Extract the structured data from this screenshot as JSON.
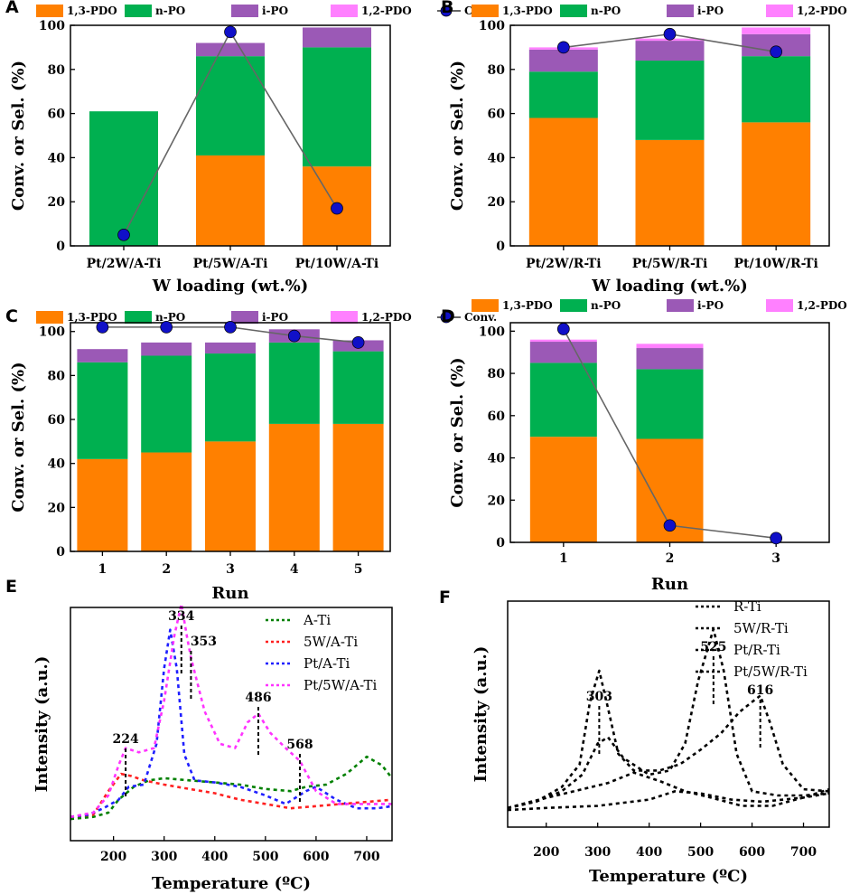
{
  "bar_series": [
    "1,3-PDO",
    "n-PO",
    "i-PO",
    "1,2-PDO"
  ],
  "conv_label": "Conv.",
  "colors": {
    "1,3-PDO": "#ff8000",
    "n-PO": "#00b050",
    "i-PO": "#9b59b6",
    "1,2-PDO": "#ff80ff",
    "conv_line": "#666666",
    "conv_marker": "#1010c8",
    "A-Ti": "#008000",
    "5W/A-Ti": "#ff2020",
    "Pt/A-Ti": "#1f1fff",
    "Pt/5W/A-Ti": "#ff33ff"
  },
  "chart_data": [
    {
      "panel": "A",
      "type": "bar",
      "stacked": true,
      "categories": [
        "Pt/2W/A-Ti",
        "Pt/5W/A-Ti",
        "Pt/10W/A-Ti"
      ],
      "series": [
        {
          "name": "1,3-PDO",
          "values": [
            0,
            41,
            36
          ]
        },
        {
          "name": "n-PO",
          "values": [
            61,
            45,
            54
          ]
        },
        {
          "name": "i-PO",
          "values": [
            0,
            6,
            9
          ]
        },
        {
          "name": "1,2-PDO",
          "values": [
            0,
            0,
            0
          ]
        }
      ],
      "conversion": [
        5,
        97,
        17
      ],
      "xlabel": "W loading (wt.%)",
      "ylabel": "Conv. or Sel. (%)",
      "ylim": [
        0,
        100
      ],
      "yticks": [
        0,
        20,
        40,
        60,
        80,
        100
      ]
    },
    {
      "panel": "B",
      "type": "bar",
      "stacked": true,
      "categories": [
        "Pt/2W/R-Ti",
        "Pt/5W/R-Ti",
        "Pt/10W/R-Ti"
      ],
      "series": [
        {
          "name": "1,3-PDO",
          "values": [
            58,
            48,
            56
          ]
        },
        {
          "name": "n-PO",
          "values": [
            21,
            36,
            30
          ]
        },
        {
          "name": "i-PO",
          "values": [
            10,
            9,
            10
          ]
        },
        {
          "name": "1,2-PDO",
          "values": [
            1,
            1,
            3
          ]
        }
      ],
      "conversion": [
        90,
        96,
        88
      ],
      "xlabel": "W loading (wt.%)",
      "ylabel": "Conv. or Sel. (%)",
      "ylim": [
        0,
        100
      ],
      "yticks": [
        0,
        20,
        40,
        60,
        80,
        100
      ]
    },
    {
      "panel": "C",
      "type": "bar",
      "stacked": true,
      "categories": [
        "1",
        "2",
        "3",
        "4",
        "5"
      ],
      "series": [
        {
          "name": "1,3-PDO",
          "values": [
            42,
            45,
            50,
            58,
            58
          ]
        },
        {
          "name": "n-PO",
          "values": [
            44,
            44,
            40,
            37,
            33
          ]
        },
        {
          "name": "i-PO",
          "values": [
            6,
            6,
            5,
            6,
            5
          ]
        },
        {
          "name": "1,2-PDO",
          "values": [
            0,
            0,
            0,
            0,
            0
          ]
        }
      ],
      "conversion": [
        102,
        102,
        102,
        98,
        95
      ],
      "xlabel": "Run",
      "ylabel": "Conv. or Sel. (%)",
      "ylim": [
        0,
        104
      ],
      "yticks": [
        0,
        20,
        40,
        60,
        80,
        100
      ]
    },
    {
      "panel": "D",
      "type": "bar",
      "stacked": true,
      "categories": [
        "1",
        "2",
        "3"
      ],
      "series": [
        {
          "name": "1,3-PDO",
          "values": [
            50,
            49,
            0
          ]
        },
        {
          "name": "n-PO",
          "values": [
            35,
            33,
            0
          ]
        },
        {
          "name": "i-PO",
          "values": [
            10,
            10,
            0
          ]
        },
        {
          "name": "1,2-PDO",
          "values": [
            1,
            2,
            0
          ]
        }
      ],
      "conversion": [
        101,
        8,
        2
      ],
      "xlabel": "Run",
      "ylabel": "Conv. or Sel. (%)",
      "ylim": [
        0,
        104
      ],
      "yticks": [
        0,
        20,
        40,
        60,
        80,
        100
      ]
    },
    {
      "panel": "E",
      "type": "line",
      "xlabel": "Temperature (ºC)",
      "ylabel": "Intensity (a.u.)",
      "xlim": [
        115,
        750
      ],
      "ylim": [
        0,
        100
      ],
      "xticks": [
        200,
        300,
        400,
        500,
        600,
        700
      ],
      "series": [
        {
          "name": "A-Ti",
          "x": [
            115,
            160,
            190,
            210,
            240,
            270,
            300,
            350,
            400,
            450,
            500,
            550,
            580,
            620,
            660,
            700,
            730,
            750
          ],
          "y": [
            5,
            6,
            8,
            14,
            20,
            23,
            24,
            23,
            22,
            21,
            19,
            18,
            20,
            21,
            26,
            34,
            30,
            24
          ]
        },
        {
          "name": "5W/A-Ti",
          "x": [
            115,
            160,
            190,
            215,
            235,
            260,
            300,
            350,
            400,
            450,
            500,
            550,
            600,
            650,
            700,
            750
          ],
          "y": [
            6,
            7,
            18,
            26,
            25,
            23,
            21,
            19,
            17,
            14,
            12,
            10,
            11,
            12,
            13,
            14
          ]
        },
        {
          "name": "Pt/A-Ti",
          "x": [
            115,
            150,
            180,
            210,
            230,
            260,
            285,
            300,
            312,
            325,
            340,
            360,
            400,
            450,
            500,
            540,
            580,
            600,
            640,
            680,
            720,
            750
          ],
          "y": [
            6,
            7,
            10,
            14,
            20,
            21,
            40,
            75,
            93,
            75,
            35,
            23,
            22,
            20,
            16,
            12,
            18,
            20,
            14,
            10,
            10,
            11
          ]
        },
        {
          "name": "Pt/5W/A-Ti",
          "x": [
            115,
            160,
            190,
            210,
            224,
            250,
            280,
            300,
            320,
            334,
            345,
            353,
            380,
            410,
            440,
            465,
            486,
            510,
            540,
            568,
            600,
            640,
            680,
            720,
            750
          ],
          "y": [
            6,
            8,
            16,
            30,
            38,
            36,
            38,
            60,
            90,
            105,
            90,
            80,
            55,
            40,
            38,
            50,
            54,
            45,
            38,
            32,
            18,
            12,
            12,
            12,
            12
          ]
        }
      ],
      "peak_labels": [
        "224",
        "334",
        "353",
        "486",
        "568"
      ]
    },
    {
      "panel": "F",
      "type": "line",
      "xlabel": "Temperature (ºC)",
      "ylabel": "Intensity (a.u.)",
      "xlim": [
        125,
        750
      ],
      "ylim": [
        0,
        100
      ],
      "xticks": [
        200,
        300,
        400,
        500,
        600,
        700
      ],
      "series": [
        {
          "name": "R-Ti",
          "x": [
            125,
            170,
            220,
            270,
            320,
            370,
            420,
            470,
            520,
            580,
            640,
            700,
            750
          ],
          "y": [
            4,
            7,
            10,
            13,
            16,
            21,
            17,
            12,
            9,
            5,
            5,
            9,
            13
          ]
        },
        {
          "name": "5W/R-Ti",
          "x": [
            125,
            200,
            300,
            400,
            450,
            500,
            560,
            620,
            700,
            750
          ],
          "y": [
            3,
            4,
            5,
            8,
            12,
            11,
            8,
            7,
            9,
            11
          ]
        },
        {
          "name": "Pt/R-Ti",
          "x": [
            125,
            180,
            230,
            265,
            285,
            303,
            320,
            340,
            370,
            420,
            460,
            500,
            540,
            575,
            600,
            616,
            635,
            660,
            700,
            750
          ],
          "y": [
            4,
            7,
            14,
            25,
            55,
            70,
            52,
            30,
            22,
            22,
            25,
            32,
            40,
            50,
            55,
            58,
            45,
            25,
            13,
            12
          ]
        },
        {
          "name": "Pt/5W/R-Ti",
          "x": [
            125,
            180,
            230,
            270,
            300,
            320,
            350,
            400,
            440,
            470,
            495,
            525,
            545,
            570,
            600,
            650,
            700,
            750
          ],
          "y": [
            4,
            7,
            12,
            20,
            35,
            38,
            28,
            20,
            22,
            35,
            65,
            90,
            70,
            30,
            12,
            10,
            10,
            11
          ]
        }
      ],
      "peak_labels": [
        "303",
        "525",
        "616"
      ]
    }
  ]
}
